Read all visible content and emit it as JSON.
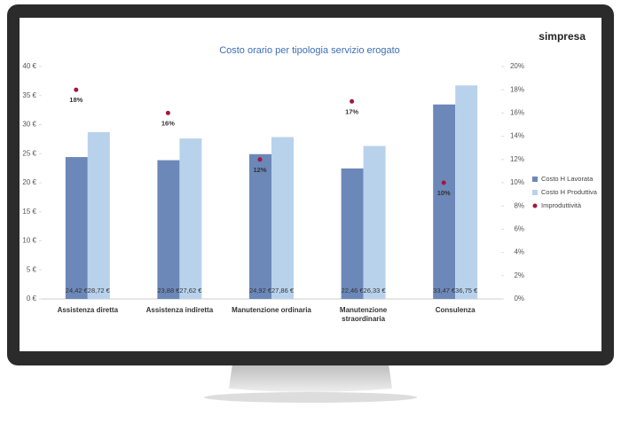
{
  "brand": "simpresa",
  "chart_data": {
    "type": "bar",
    "title": "Costo orario per tipologia servizio erogato",
    "categories": [
      "Assistenza diretta",
      "Assistenza indiretta",
      "Manutenzione ordinaria",
      "Manutenzione straordinaria",
      "Consulenza"
    ],
    "series": [
      {
        "name": "Costo H Lavorata",
        "color": "#6c88b9",
        "values": [
          24.42,
          23.88,
          24.92,
          22.46,
          33.47
        ],
        "value_labels": [
          "24,42 €",
          "23,88 €",
          "24,92 €",
          "22,46 €",
          "33,47 €"
        ]
      },
      {
        "name": "Costo H Produttiva",
        "color": "#b9d2ec",
        "values": [
          28.72,
          27.62,
          27.86,
          26.33,
          36.75
        ],
        "value_labels": [
          "28,72 €",
          "27,62 €",
          "27,86 €",
          "26,33 €",
          "36,75 €"
        ]
      },
      {
        "name": "Improduttività",
        "color": "#a3173f",
        "type": "scatter",
        "axis": "y2",
        "values": [
          18,
          16,
          12,
          17,
          10
        ],
        "value_labels": [
          "18%",
          "16%",
          "12%",
          "17%",
          "10%"
        ]
      }
    ],
    "ylim": [
      0,
      40
    ],
    "yticks": [
      {
        "value": 0,
        "label": "0 €"
      },
      {
        "value": 5,
        "label": "5 €"
      },
      {
        "value": 10,
        "label": "10 €"
      },
      {
        "value": 15,
        "label": "15 €"
      },
      {
        "value": 20,
        "label": "20 €"
      },
      {
        "value": 25,
        "label": "25 €"
      },
      {
        "value": 30,
        "label": "30 €"
      },
      {
        "value": 35,
        "label": "35 €"
      },
      {
        "value": 40,
        "label": "40 €"
      }
    ],
    "y2lim": [
      0,
      20
    ],
    "y2ticks": [
      {
        "value": 0,
        "label": "0%"
      },
      {
        "value": 2,
        "label": "2%"
      },
      {
        "value": 4,
        "label": "4%"
      },
      {
        "value": 6,
        "label": "6%"
      },
      {
        "value": 8,
        "label": "8%"
      },
      {
        "value": 10,
        "label": "10%"
      },
      {
        "value": 12,
        "label": "12%"
      },
      {
        "value": 14,
        "label": "14%"
      },
      {
        "value": 16,
        "label": "16%"
      },
      {
        "value": 18,
        "label": "18%"
      },
      {
        "value": 20,
        "label": "20%"
      }
    ],
    "legend": "right"
  }
}
